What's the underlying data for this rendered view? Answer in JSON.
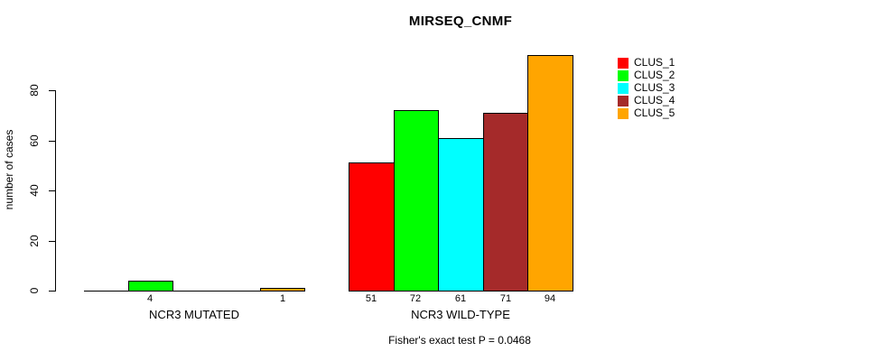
{
  "chart_data": {
    "type": "bar",
    "title": "MIRSEQ_CNMF",
    "xlabel": "",
    "ylabel": "number of cases",
    "footer": "Fisher's exact test P = 0.0468",
    "categories": [
      "NCR3 MUTATED",
      "NCR3 WILD-TYPE"
    ],
    "series": [
      {
        "name": "CLUS_1",
        "color": "#FF0000",
        "values": [
          0,
          51
        ]
      },
      {
        "name": "CLUS_2",
        "color": "#00FF00",
        "values": [
          4,
          72
        ]
      },
      {
        "name": "CLUS_3",
        "color": "#00FFFF",
        "values": [
          0,
          61
        ]
      },
      {
        "name": "CLUS_4",
        "color": "#A52A2A",
        "values": [
          0,
          71
        ]
      },
      {
        "name": "CLUS_5",
        "color": "#FFA500",
        "values": [
          1,
          94
        ]
      }
    ],
    "yticks": [
      0,
      20,
      40,
      60,
      80
    ],
    "ylim": [
      0,
      94
    ],
    "grid": false,
    "legend_position": "right",
    "bar_value_labels_shown_for_nonzero": true,
    "text_color": "#000000",
    "background_color": "#FFFFFF"
  }
}
